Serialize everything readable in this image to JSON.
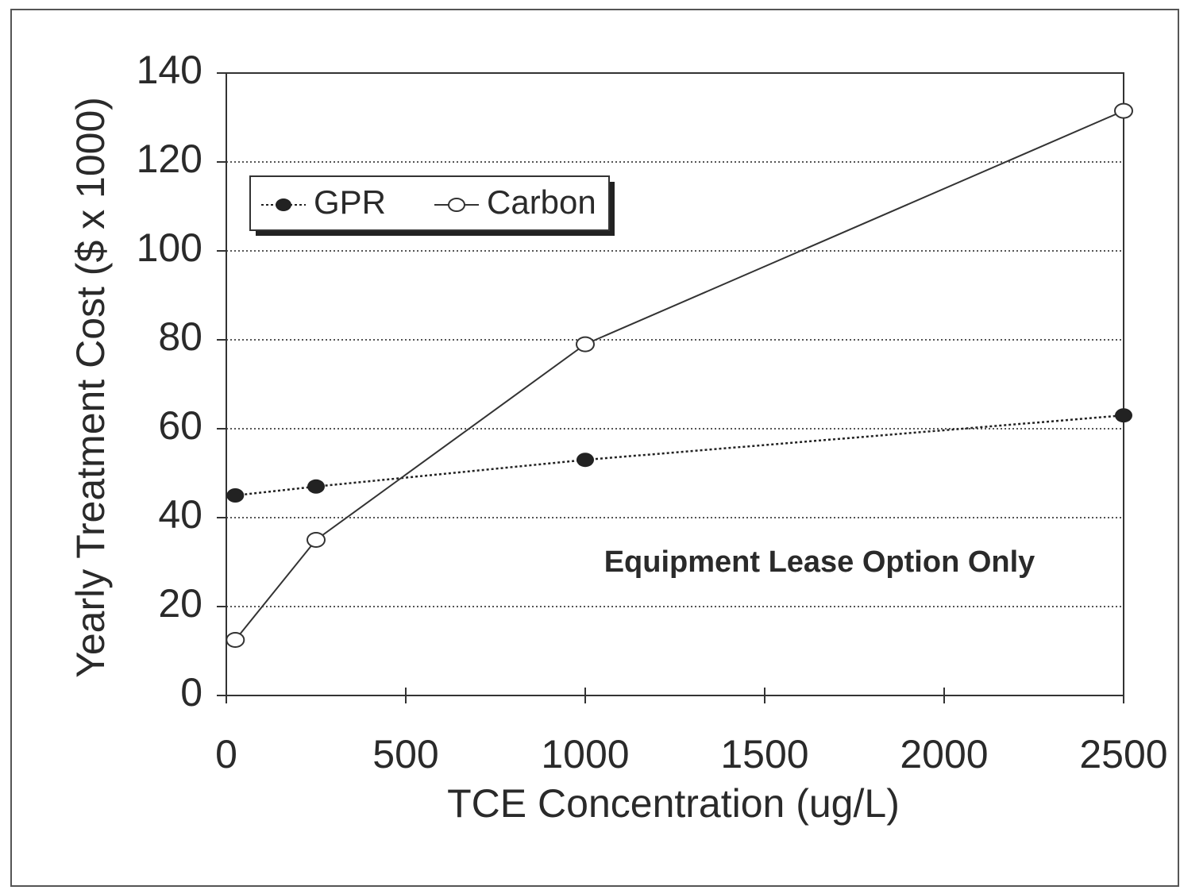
{
  "chart_data": {
    "type": "line",
    "x_label": "TCE Concentration (ug/L)",
    "y_label": "Yearly Treatment Cost ($ x 1000)",
    "annotation": "Equipment Lease Option Only",
    "series": [
      {
        "name": "GPR",
        "color": "#222222",
        "marker": "filled",
        "line": "dotted",
        "x": [
          25,
          250,
          1000,
          2500
        ],
        "values": [
          45,
          47,
          53,
          63
        ]
      },
      {
        "name": "Carbon",
        "color": "#333333",
        "marker": "open",
        "line": "solid",
        "x": [
          25,
          250,
          1000,
          2500
        ],
        "values": [
          12.5,
          35,
          79,
          131.5
        ]
      }
    ],
    "xlim": [
      0,
      2500
    ],
    "xticks": [
      0,
      500,
      1000,
      1500,
      2000,
      2500
    ],
    "ylim": [
      0,
      140
    ],
    "yticks": [
      0,
      20,
      40,
      60,
      80,
      100,
      120,
      140
    ],
    "grid": true,
    "legend": "upper left"
  }
}
